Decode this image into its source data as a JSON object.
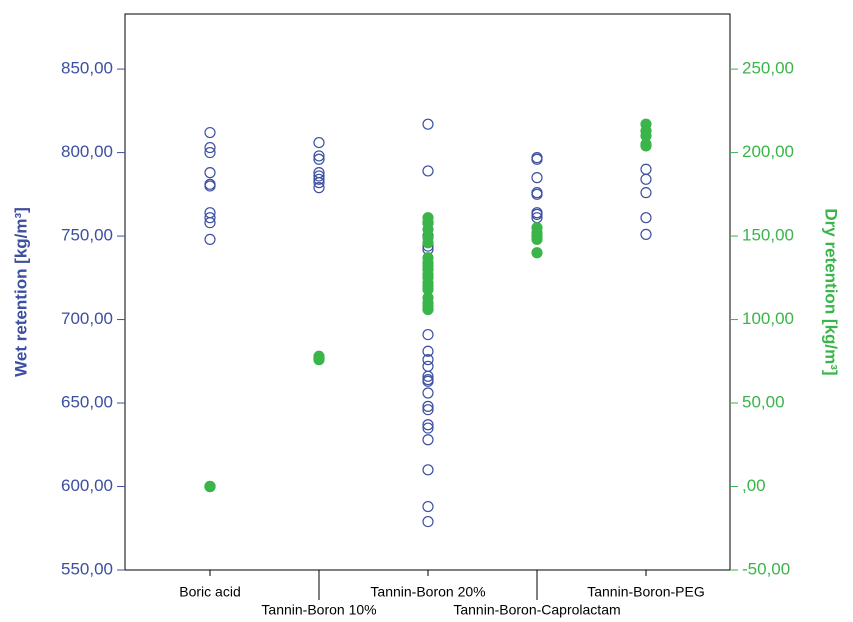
{
  "chart_data": {
    "type": "scatter",
    "categories": [
      "Boric acid",
      "Tannin-Boron 10%",
      "Tannin-Boron 20%",
      "Tannin-Boron-Caprolactam",
      "Tannin-Boron-PEG"
    ],
    "ylabel": "Wet retention [kg/m³]",
    "y2label": "Dry retention [kg/m³]",
    "ylim": [
      550,
      883
    ],
    "yticks": [
      {
        "value": 550,
        "label": "550,00"
      },
      {
        "value": 600,
        "label": "600,00"
      },
      {
        "value": 650,
        "label": "650,00"
      },
      {
        "value": 700,
        "label": "700,00"
      },
      {
        "value": 750,
        "label": "750,00"
      },
      {
        "value": 800,
        "label": "800,00"
      },
      {
        "value": 850,
        "label": "850,00"
      }
    ],
    "y2lim": [
      -50,
      283
    ],
    "y2ticks": [
      {
        "value": -50,
        "label": "-50,00"
      },
      {
        "value": 0,
        "label": ",00"
      },
      {
        "value": 50,
        "label": "50,00"
      },
      {
        "value": 100,
        "label": "100,00"
      },
      {
        "value": 150,
        "label": "150,00"
      },
      {
        "value": 200,
        "label": "200,00"
      },
      {
        "value": 250,
        "label": "250,00"
      }
    ],
    "series": [
      {
        "color": "#3c4fa0",
        "marker": "open",
        "values": [
          [
            812,
            803,
            800,
            788,
            781,
            780,
            764,
            761,
            758,
            748
          ],
          [
            806,
            798,
            796,
            788,
            786,
            784,
            782,
            779
          ],
          [
            817,
            789,
            758,
            750,
            744,
            742,
            691,
            681,
            676,
            672,
            666,
            664,
            663,
            656,
            648,
            646,
            637,
            635,
            628,
            610,
            588,
            579
          ],
          [
            797,
            796,
            785,
            776,
            775,
            764,
            763,
            761
          ],
          [
            790,
            784,
            776,
            761,
            751
          ]
        ]
      },
      {
        "color": "#3ab54a",
        "marker": "filled",
        "axis": "y2",
        "values": [
          [
            0,
            0,
            0
          ],
          [
            78,
            77,
            76
          ],
          [
            161,
            158,
            154,
            149,
            146,
            137,
            134,
            132,
            130,
            127,
            125,
            122,
            120,
            118,
            113,
            110,
            108,
            106
          ],
          [
            155,
            152,
            150,
            148,
            140
          ],
          [
            217,
            213,
            210,
            205,
            204
          ]
        ]
      }
    ]
  }
}
